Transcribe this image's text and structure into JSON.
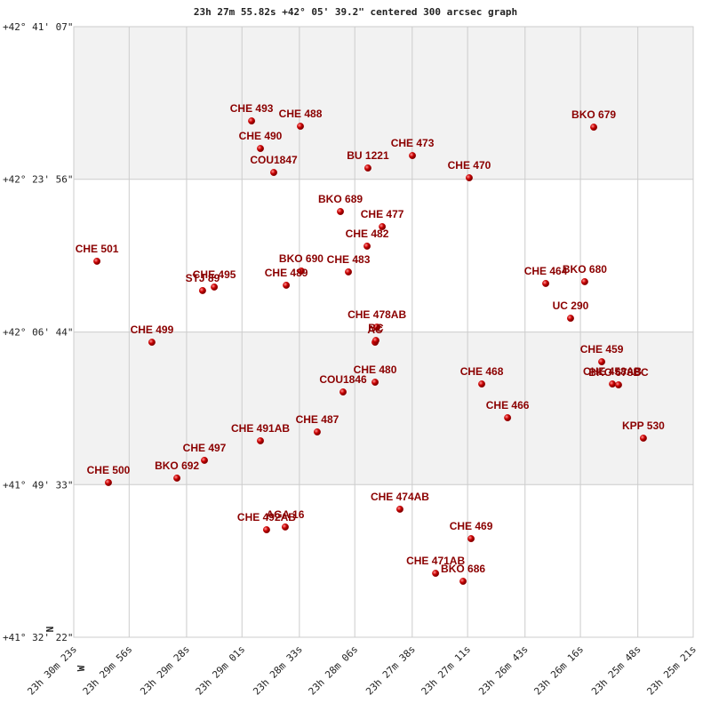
{
  "chart_data": {
    "type": "scatter",
    "title": "23h 27m 55.82s +42° 05' 39.2\" centered 300 arcsec graph",
    "point_labels": [
      "CHE 493",
      "CHE 488",
      "CHE 490",
      "COU1847",
      "BKO 679",
      "CHE 473",
      "BU 1221",
      "CHE 470",
      "BKO 689",
      "CHE 477",
      "CHE 482",
      "CHE 501",
      "BKO 690",
      "CHE 483",
      "CHE 489",
      "CHE 495",
      "STJ  89",
      "CHE 464",
      "BKO 680",
      "UC  290",
      "CHE 478AB",
      "AC",
      "BC",
      "CHE 499",
      "CHE 459",
      "CHE 458AB",
      "BKO 678BC",
      "CHE 468",
      "CHE 480",
      "COU1846",
      "CHE 466",
      "KPP 530",
      "CHE 487",
      "CHE 491AB",
      "CHE 497",
      "BKO 692",
      "CHE 500",
      "CHE 474AB",
      "CHE 492AB",
      "AGA  16",
      "CHE 469",
      "CHE 471AB",
      "BKO 686"
    ],
    "x": [
      1736.3,
      1712.5,
      1732.0,
      1725.5,
      1569.5,
      1657.9,
      1679.6,
      1630.2,
      1693.0,
      1672.6,
      1680.0,
      1811.7,
      1712.1,
      1689.1,
      1719.4,
      1754.5,
      1760.2,
      1592.9,
      1573.9,
      1580.8,
      1675.2,
      1676.1,
      1675.7,
      1784.9,
      1565.6,
      1560.4,
      1557.4,
      1624.1,
      1676.1,
      1691.7,
      1611.5,
      1545.3,
      1704.3,
      1732.0,
      1759.3,
      1772.7,
      1806.1,
      1664.0,
      1729.0,
      1719.9,
      1629.3,
      1646.6,
      1633.2
    ],
    "values": [
      5430,
      5394,
      5244,
      5082,
      5388,
      5196,
      5112,
      5046,
      4818,
      4716,
      4584,
      4482,
      4416,
      4410,
      4320,
      4308,
      4284,
      4332,
      4344,
      4097,
      4037,
      3935,
      3947,
      3935,
      3803,
      3653,
      3647,
      3653,
      3665,
      3599,
      3425,
      3287,
      3329,
      3269,
      3137,
      3017,
      2987,
      2807,
      2668,
      2687,
      2608,
      2374,
      2320
    ],
    "color": "#cc0000",
    "xlim": [
      1823,
      1521
    ],
    "ylim": [
      1942,
      6067
    ],
    "xticks": [
      {
        "value": 1823,
        "label": "23h 30m 23s"
      },
      {
        "value": 1796,
        "label": "23h 29m 56s"
      },
      {
        "value": 1768,
        "label": "23h 29m 28s"
      },
      {
        "value": 1741,
        "label": "23h 29m 01s"
      },
      {
        "value": 1713,
        "label": "23h 28m 33s"
      },
      {
        "value": 1686,
        "label": "23h 28m 06s"
      },
      {
        "value": 1658,
        "label": "23h 27m 38s"
      },
      {
        "value": 1631,
        "label": "23h 27m 11s"
      },
      {
        "value": 1603,
        "label": "23h 26m 43s"
      },
      {
        "value": 1576,
        "label": "23h 26m 16s"
      },
      {
        "value": 1548,
        "label": "23h 25m 48s"
      },
      {
        "value": 1521,
        "label": "23h 25m 21s"
      }
    ],
    "yticks": [
      {
        "value": 6067,
        "label": "+42° 41' 07\""
      },
      {
        "value": 5036,
        "label": "+42° 23' 56\""
      },
      {
        "value": 4004,
        "label": "+42° 06' 44\""
      },
      {
        "value": 2973,
        "label": "+41° 49' 33\""
      },
      {
        "value": 1942,
        "label": "+41° 32' 22\""
      }
    ],
    "compass": [
      "N",
      "W"
    ],
    "grid": true
  }
}
